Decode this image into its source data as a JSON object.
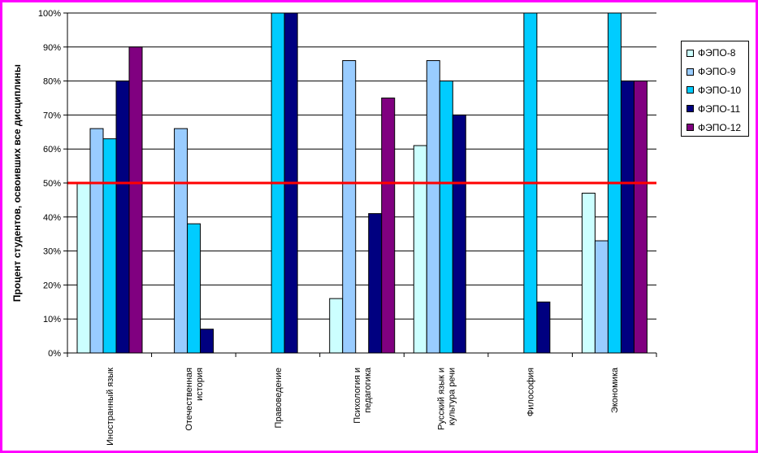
{
  "chart_data": {
    "type": "bar",
    "ylabel": "Процент студентов, освоивших все дисциплины",
    "ylim": [
      0,
      100
    ],
    "yticks": [
      "0%",
      "10%",
      "20%",
      "30%",
      "40%",
      "50%",
      "60%",
      "70%",
      "80%",
      "90%",
      "100%"
    ],
    "categories": [
      [
        "Иностранный язык"
      ],
      [
        "Отечественная",
        "история"
      ],
      [
        "Правоведение"
      ],
      [
        "Психология и",
        "педагогика"
      ],
      [
        "Русский язык и",
        "культура речи"
      ],
      [
        "Философия"
      ],
      [
        "Экономика"
      ]
    ],
    "series": [
      {
        "name": "ФЭПО-8",
        "color": "#ccffff",
        "values": [
          50,
          0,
          0,
          16,
          61,
          0,
          47
        ]
      },
      {
        "name": "ФЭПО-9",
        "color": "#99ccff",
        "values": [
          66,
          66,
          0,
          86,
          86,
          0,
          33
        ]
      },
      {
        "name": "ФЭПО-10",
        "color": "#00ccff",
        "values": [
          63,
          38,
          100,
          0,
          80,
          100,
          100
        ]
      },
      {
        "name": "ФЭПО-11",
        "color": "#000080",
        "values": [
          80,
          7,
          100,
          41,
          70,
          15,
          80
        ]
      },
      {
        "name": "ФЭПО-12",
        "color": "#800080",
        "values": [
          90,
          0,
          0,
          75,
          0,
          0,
          80
        ]
      }
    ],
    "threshold": {
      "value": 50,
      "color": "#ff0000"
    },
    "grid": true,
    "legend": "right"
  }
}
